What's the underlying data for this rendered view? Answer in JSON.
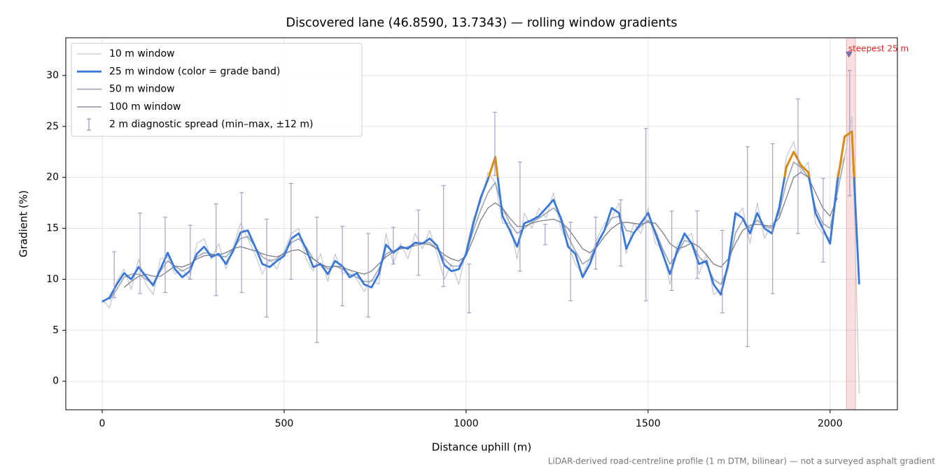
{
  "chart_data": {
    "type": "line",
    "title": "Discovered lane (46.8590, 13.7343) — rolling window gradients",
    "xlabel": "Distance uphill (m)",
    "ylabel": "Gradient (%)",
    "footnote": "LiDAR-derived road-centreline profile (1 m DTM, bilinear) — not a surveyed asphalt gradient",
    "xlim": [
      -100,
      2185
    ],
    "ylim": [
      -2.8,
      33.7
    ],
    "xticks": [
      0,
      500,
      1000,
      1500,
      2000
    ],
    "yticks": [
      0,
      5,
      10,
      15,
      20,
      25,
      30
    ],
    "grid": true,
    "legend": "upper left",
    "x": [
      0,
      20,
      40,
      60,
      80,
      100,
      120,
      140,
      160,
      180,
      200,
      220,
      240,
      260,
      280,
      300,
      320,
      340,
      360,
      380,
      400,
      420,
      440,
      460,
      480,
      500,
      520,
      540,
      560,
      580,
      600,
      620,
      640,
      660,
      680,
      700,
      720,
      740,
      760,
      780,
      800,
      820,
      840,
      860,
      880,
      900,
      920,
      940,
      960,
      980,
      1000,
      1020,
      1040,
      1060,
      1080,
      1100,
      1120,
      1140,
      1160,
      1180,
      1200,
      1220,
      1240,
      1260,
      1280,
      1300,
      1320,
      1340,
      1360,
      1380,
      1400,
      1420,
      1440,
      1460,
      1480,
      1500,
      1520,
      1540,
      1560,
      1580,
      1600,
      1620,
      1640,
      1660,
      1680,
      1700,
      1720,
      1740,
      1760,
      1780,
      1800,
      1820,
      1840,
      1860,
      1880,
      1900,
      1920,
      1940,
      1960,
      1980,
      2000,
      2020,
      2040,
      2060,
      2080
    ],
    "series": [
      {
        "name": "10 m window",
        "color": "#c5cad3",
        "values": [
          8.0,
          7.2,
          9.8,
          11.0,
          9.0,
          12.0,
          9.5,
          8.5,
          12.0,
          12.2,
          10.5,
          11.0,
          10.0,
          13.5,
          14.0,
          12.0,
          13.5,
          11.0,
          13.2,
          15.5,
          14.0,
          12.5,
          10.5,
          12.0,
          11.0,
          12.8,
          14.5,
          15.0,
          12.0,
          10.8,
          12.5,
          9.8,
          12.5,
          10.5,
          11.0,
          10.0,
          8.8,
          10.0,
          9.5,
          14.5,
          11.5,
          13.5,
          12.0,
          14.5,
          13.0,
          14.8,
          12.5,
          10.0,
          11.5,
          9.5,
          13.0,
          16.0,
          17.5,
          20.5,
          19.5,
          15.5,
          15.5,
          12.0,
          16.5,
          15.0,
          17.0,
          16.0,
          18.5,
          15.0,
          13.5,
          11.5,
          10.5,
          12.0,
          14.0,
          15.5,
          16.0,
          17.5,
          12.5,
          15.5,
          14.5,
          17.0,
          13.5,
          13.0,
          9.5,
          13.5,
          14.0,
          14.5,
          10.5,
          12.5,
          8.5,
          9.0,
          11.0,
          16.0,
          17.0,
          13.5,
          17.5,
          14.0,
          15.5,
          16.0,
          22.0,
          23.5,
          20.5,
          21.5,
          15.5,
          14.5,
          14.0,
          20.5,
          22.0,
          26.0,
          -1.2
        ]
      },
      {
        "name": "25 m window (color = grade band)",
        "color": "#3a78d8",
        "grade_band": {
          "min": 20,
          "color": "#e08a00"
        },
        "values": [
          7.8,
          8.2,
          9.5,
          10.6,
          10.0,
          11.2,
          10.3,
          9.4,
          11.0,
          12.6,
          11.0,
          10.2,
          10.8,
          12.5,
          13.2,
          12.2,
          12.5,
          11.5,
          12.8,
          14.6,
          14.8,
          13.2,
          11.5,
          11.2,
          11.8,
          12.3,
          14.0,
          14.5,
          13.0,
          11.2,
          11.5,
          10.5,
          11.8,
          11.3,
          10.2,
          10.6,
          9.5,
          9.2,
          10.5,
          13.4,
          12.6,
          13.2,
          13.0,
          13.6,
          13.5,
          14.0,
          13.3,
          11.4,
          10.8,
          11.0,
          12.5,
          15.5,
          18.0,
          19.8,
          22.0,
          16.2,
          14.8,
          13.2,
          15.5,
          15.8,
          16.2,
          17.0,
          17.8,
          16.0,
          13.2,
          12.5,
          10.2,
          11.5,
          13.5,
          14.8,
          17.0,
          16.5,
          13.0,
          14.5,
          15.5,
          16.5,
          14.5,
          12.5,
          10.5,
          12.8,
          14.5,
          13.5,
          11.5,
          11.8,
          9.5,
          8.5,
          11.5,
          16.5,
          16.0,
          14.5,
          16.5,
          15.0,
          14.5,
          17.0,
          21.0,
          22.5,
          21.2,
          20.5,
          16.5,
          15.0,
          13.5,
          19.5,
          24.0,
          24.5,
          9.5
        ]
      },
      {
        "name": "50 m window",
        "color": "#9aa4b2",
        "values": [
          null,
          8.0,
          9.0,
          10.2,
          10.5,
          10.5,
          10.0,
          9.6,
          10.8,
          11.8,
          11.3,
          10.8,
          11.2,
          12.2,
          12.6,
          12.5,
          12.3,
          12.2,
          13.0,
          14.0,
          14.2,
          13.2,
          12.2,
          11.8,
          12.0,
          12.6,
          13.6,
          14.0,
          13.2,
          12.0,
          11.5,
          11.0,
          11.3,
          11.0,
          10.5,
          10.2,
          9.8,
          9.8,
          11.0,
          12.5,
          12.8,
          13.0,
          13.2,
          13.5,
          13.6,
          13.6,
          13.0,
          12.0,
          11.3,
          11.3,
          12.5,
          14.8,
          16.8,
          18.5,
          19.5,
          17.0,
          15.5,
          14.5,
          15.0,
          15.6,
          16.0,
          16.5,
          17.0,
          16.2,
          14.2,
          12.8,
          11.5,
          12.0,
          13.4,
          14.8,
          16.0,
          16.2,
          14.8,
          14.6,
          15.2,
          15.8,
          14.8,
          13.0,
          11.5,
          12.5,
          13.8,
          13.6,
          12.2,
          11.5,
          10.0,
          9.5,
          11.2,
          14.5,
          15.8,
          15.0,
          15.8,
          15.2,
          15.0,
          16.5,
          19.5,
          21.5,
          21.0,
          20.0,
          17.0,
          15.5,
          15.0,
          18.5,
          22.0,
          null,
          null
        ]
      },
      {
        "name": "100 m window",
        "color": "#7a7f87",
        "values": [
          null,
          null,
          null,
          9.2,
          9.8,
          10.3,
          10.5,
          10.3,
          10.3,
          10.8,
          11.3,
          11.2,
          11.5,
          12.0,
          12.3,
          12.4,
          12.4,
          12.6,
          13.0,
          13.2,
          13.0,
          12.8,
          12.5,
          12.3,
          12.2,
          12.5,
          12.8,
          12.9,
          12.5,
          12.0,
          11.5,
          11.2,
          11.3,
          11.2,
          10.9,
          10.7,
          10.5,
          10.8,
          11.5,
          12.2,
          12.7,
          13.0,
          13.1,
          13.3,
          13.5,
          13.4,
          13.0,
          12.4,
          12.0,
          11.8,
          12.3,
          14.0,
          15.8,
          17.0,
          17.5,
          17.0,
          16.0,
          15.2,
          15.2,
          15.5,
          15.7,
          15.8,
          15.9,
          15.6,
          15.0,
          14.0,
          13.0,
          12.6,
          13.2,
          14.2,
          15.0,
          15.5,
          15.6,
          15.5,
          15.4,
          15.6,
          15.5,
          14.6,
          13.5,
          13.0,
          13.2,
          13.6,
          13.2,
          12.4,
          11.5,
          11.2,
          12.0,
          13.5,
          14.8,
          15.3,
          15.4,
          15.3,
          15.2,
          16.0,
          18.0,
          20.0,
          20.5,
          20.0,
          18.5,
          17.0,
          16.2,
          18.0,
          null,
          null,
          null
        ]
      }
    ],
    "error_bars": {
      "name": "2 m diagnostic spread (min–max, ±12 m)",
      "color": "#9a8fbf",
      "x": [
        33,
        104,
        173,
        242,
        313,
        383,
        452,
        519,
        590,
        660,
        731,
        800,
        869,
        938,
        1008,
        1079,
        1148,
        1217,
        1287,
        1356,
        1425,
        1494,
        1565,
        1635,
        1704,
        1773,
        1842,
        1912,
        1981,
        2054
      ],
      "min": [
        8.2,
        8.6,
        8.7,
        10.0,
        8.4,
        8.7,
        6.3,
        10.0,
        3.8,
        7.4,
        6.3,
        11.5,
        10.4,
        9.3,
        6.7,
        20.2,
        10.8,
        13.4,
        7.9,
        11.0,
        11.3,
        7.9,
        8.9,
        10.1,
        6.7,
        3.4,
        8.6,
        14.5,
        11.7,
        18.2
      ],
      "max": [
        12.7,
        16.5,
        16.1,
        15.3,
        17.4,
        18.5,
        15.9,
        19.4,
        16.1,
        15.2,
        14.5,
        15.1,
        16.8,
        19.2,
        11.5,
        26.4,
        21.5,
        15.4,
        15.6,
        16.1,
        17.8,
        24.8,
        16.7,
        16.7,
        14.8,
        23.0,
        23.3,
        27.7,
        19.9,
        30.5
      ]
    },
    "steepest": {
      "label": "steepest 25 m",
      "x": 2052,
      "value": 32.0,
      "span": [
        2045,
        2070
      ],
      "color": "#d62728"
    }
  }
}
